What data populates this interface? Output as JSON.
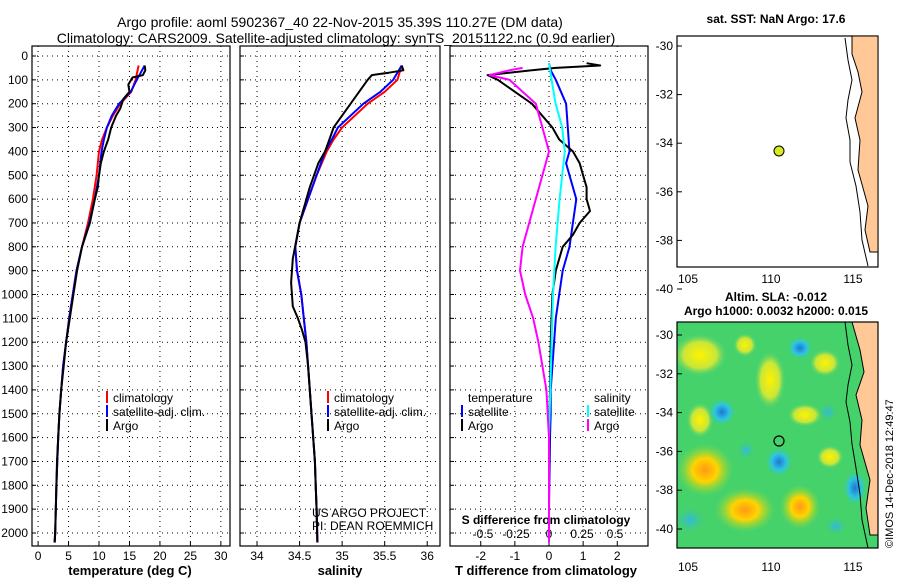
{
  "header": {
    "line1": "Argo profile: aoml 5902367_40 22-Nov-2015 35.39S 110.27E (DM data)",
    "line2": "Climatology: CARS2009. Satellite-adjusted climatology: synTS_20151122.nc (0.9d earlier)"
  },
  "credits": {
    "project": "US ARGO PROJECT",
    "pi": "PI: DEAN ROEMMICH",
    "imos": "©IMOS 14-Dec-2018 12:49:47"
  },
  "colors": {
    "climatology": "#ff0000",
    "satellite": "#0000ff",
    "argo": "#000000",
    "sal_satellite": "#00ffff",
    "sal_argo": "#ff00ff",
    "land": "#ffc896"
  },
  "depth_axis": {
    "ticks": [
      "0",
      "100",
      "200",
      "300",
      "400",
      "500",
      "600",
      "700",
      "800",
      "900",
      "1000",
      "1100",
      "1200",
      "1300",
      "1400",
      "1500",
      "1600",
      "1700",
      "1800",
      "1900",
      "2000"
    ]
  },
  "panels": {
    "temperature": {
      "xlabel": "temperature (deg C)",
      "xticks": [
        "0",
        "5",
        "10",
        "15",
        "20",
        "25",
        "30"
      ]
    },
    "salinity": {
      "xlabel": "salinity",
      "xticks": [
        "34",
        "34.5",
        "35",
        "35.5",
        "36"
      ]
    },
    "difference": {
      "xlabel": "T difference from climatology",
      "xticks": [
        "-2",
        "-1",
        "0",
        "1",
        "2"
      ],
      "top_label": "S difference from climatology",
      "top_ticks": [
        "-0.5",
        "-0.25",
        "0",
        "0.25",
        "0.5"
      ]
    }
  },
  "legend": {
    "climatology": "climatology",
    "satellite": "satellite-adj. clim.",
    "argo": "Argo"
  },
  "diff_legend": {
    "temperature": "temperature",
    "salinity": "salinity",
    "satellite": "satellite",
    "argo": "Argo"
  },
  "map_top": {
    "title": "sat. SST: NaN Argo: 17.6",
    "yticks": [
      "-30",
      "-32",
      "-34",
      "-36",
      "-38",
      "-40"
    ],
    "xticks": [
      "105",
      "110",
      "115"
    ]
  },
  "map_bottom": {
    "title1": "Altim. SLA: -0.012",
    "title2": "Argo h1000: 0.0032 h2000: 0.015",
    "yticks": [
      "-30",
      "-32",
      "-34",
      "-36",
      "-38",
      "-40"
    ],
    "xticks": [
      "105",
      "110",
      "115"
    ]
  },
  "chart_data": [
    {
      "type": "line",
      "title": "temperature",
      "xlabel": "temperature (deg C)",
      "ylabel": "depth",
      "xlim": [
        -1,
        31.5
      ],
      "ylim": [
        2060,
        0
      ],
      "series": [
        {
          "name": "climatology",
          "x": [
            16.5,
            16,
            15.3,
            13.5,
            12.3,
            11.3,
            10.5,
            10,
            9.6,
            9,
            8.2,
            7.2,
            6.3,
            5.7,
            5.1,
            4.6,
            4.1,
            3.8,
            3.5,
            3.3,
            3.15,
            3.0,
            2.9,
            2.8,
            2.7
          ],
          "y": [
            40,
            100,
            150,
            200,
            250,
            300,
            350,
            400,
            500,
            600,
            700,
            800,
            900,
            1000,
            1100,
            1200,
            1300,
            1400,
            1500,
            1600,
            1700,
            1800,
            1900,
            2000,
            2040
          ]
        },
        {
          "name": "satellite-adj. clim.",
          "x": [
            17.5,
            16.2,
            15.2,
            13.3,
            12.1,
            11.3,
            10.8,
            10.4,
            10,
            9.3,
            8.4,
            7.2,
            6.3,
            5.7,
            5.1,
            4.6,
            4.1,
            3.8,
            3.5,
            3.3,
            3.15,
            3.0,
            2.9,
            2.8,
            2.7
          ],
          "y": [
            40,
            100,
            150,
            200,
            250,
            300,
            350,
            400,
            500,
            600,
            700,
            800,
            900,
            1000,
            1100,
            1200,
            1300,
            1400,
            1500,
            1600,
            1700,
            1800,
            1900,
            2000,
            2040
          ]
        },
        {
          "name": "Argo",
          "x": [
            17.5,
            17.6,
            17.2,
            15.5,
            14.8,
            15,
            14,
            13.5,
            12.8,
            12,
            11.5,
            10.8,
            10.3,
            10,
            9.8,
            9.3,
            8.5,
            7.2,
            6.4,
            5.8,
            5.2,
            4.6,
            4.2,
            3.8,
            3.5,
            3.3,
            3.1,
            3.0,
            2.9,
            2.8,
            2.75
          ],
          "y": [
            40,
            60,
            80,
            90,
            120,
            150,
            180,
            220,
            250,
            300,
            350,
            400,
            450,
            500,
            550,
            600,
            700,
            800,
            900,
            1000,
            1100,
            1200,
            1300,
            1400,
            1500,
            1600,
            1700,
            1800,
            1900,
            2000,
            2040
          ]
        }
      ]
    },
    {
      "type": "line",
      "title": "salinity",
      "xlabel": "salinity",
      "ylabel": "depth",
      "xlim": [
        33.8,
        36.15
      ],
      "ylim": [
        2060,
        0
      ],
      "series": [
        {
          "name": "climatology",
          "x": [
            35.7,
            35.65,
            35.5,
            35.3,
            35.15,
            35.0,
            34.9,
            34.82,
            34.7,
            34.6,
            34.5,
            34.45,
            34.47,
            34.52,
            34.55,
            34.58,
            34.6,
            34.62,
            34.64,
            34.66,
            34.68,
            34.69,
            34.7,
            34.71
          ],
          "y": [
            40,
            100,
            150,
            200,
            250,
            300,
            350,
            400,
            500,
            600,
            700,
            800,
            900,
            1000,
            1100,
            1200,
            1300,
            1400,
            1500,
            1600,
            1700,
            1800,
            1900,
            2040
          ]
        },
        {
          "name": "satellite-adj. clim.",
          "x": [
            35.7,
            35.6,
            35.45,
            35.25,
            35.1,
            34.95,
            34.88,
            34.8,
            34.7,
            34.6,
            34.5,
            34.45,
            34.47,
            34.52,
            34.55,
            34.58,
            34.6,
            34.62,
            34.64,
            34.66,
            34.68,
            34.69,
            34.7,
            34.71
          ],
          "y": [
            40,
            100,
            150,
            200,
            250,
            300,
            350,
            400,
            500,
            600,
            700,
            800,
            900,
            1000,
            1100,
            1200,
            1300,
            1400,
            1500,
            1600,
            1700,
            1800,
            1900,
            2040
          ]
        },
        {
          "name": "Argo",
          "x": [
            35.7,
            35.72,
            35.55,
            35.35,
            35.3,
            35.2,
            35.1,
            35.0,
            34.9,
            34.85,
            34.8,
            34.72,
            34.62,
            34.5,
            34.42,
            34.4,
            34.42,
            34.48,
            34.53,
            34.57,
            34.6,
            34.62,
            34.64,
            34.66,
            34.68,
            34.69,
            34.7,
            34.71
          ],
          "y": [
            40,
            60,
            70,
            80,
            100,
            150,
            200,
            250,
            300,
            350,
            400,
            450,
            550,
            700,
            850,
            950,
            1050,
            1100,
            1150,
            1200,
            1300,
            1400,
            1500,
            1600,
            1700,
            1800,
            1900,
            2040
          ]
        }
      ]
    },
    {
      "type": "line",
      "title": "difference from climatology",
      "xlabel": "T difference from climatology",
      "ylabel": "depth",
      "xlim": [
        -2.9,
        2.9
      ],
      "ylim": [
        2060,
        0
      ],
      "series": [
        {
          "name": "T satellite",
          "x": [
            0,
            0.05,
            0.2,
            0.5,
            0.55,
            0.6,
            0.5,
            0.6,
            0.8,
            0.7,
            0.6,
            0.4,
            0.3,
            0.2,
            0.15,
            0.1,
            0.05,
            0.05,
            0.03,
            0.02,
            0.01,
            0,
            0,
            0
          ],
          "y": [
            30,
            60,
            100,
            200,
            300,
            400,
            450,
            500,
            600,
            700,
            800,
            900,
            1000,
            1100,
            1200,
            1300,
            1400,
            1500,
            1600,
            1700,
            1800,
            1900,
            2000,
            2040
          ]
        },
        {
          "name": "T Argo",
          "x": [
            1.1,
            1.5,
            0.2,
            -0.5,
            -1.8,
            -1.5,
            -1,
            -0.5,
            0.1,
            0.3,
            0.7,
            0.9,
            1.0,
            1.1,
            1.1,
            1.2,
            0.9,
            0.7,
            0.4,
            0.2,
            0.1,
            0.05,
            0.03,
            0.01,
            0,
            0
          ],
          "y": [
            30,
            40,
            50,
            60,
            80,
            100,
            150,
            200,
            300,
            350,
            400,
            450,
            500,
            550,
            600,
            650,
            700,
            750,
            800,
            900,
            1000,
            1200,
            1400,
            1600,
            1800,
            2040
          ]
        },
        {
          "name": "S satellite",
          "x": [
            0,
            0.02,
            0.05,
            0.1,
            0.12,
            0.08,
            0.05,
            0.03,
            0.02,
            0.01,
            0,
            0,
            0
          ],
          "y": [
            30,
            100,
            200,
            300,
            400,
            600,
            800,
            1000,
            1200,
            1400,
            1600,
            1800,
            2040
          ]
        },
        {
          "name": "S Argo",
          "x": [
            -0.2,
            -0.3,
            -0.45,
            -0.3,
            -0.1,
            -0.05,
            0,
            -0.05,
            -0.1,
            -0.15,
            -0.2,
            -0.22,
            -0.18,
            -0.12,
            -0.08,
            -0.05,
            -0.02,
            0,
            0
          ],
          "y": [
            50,
            60,
            80,
            100,
            200,
            300,
            400,
            500,
            600,
            700,
            800,
            900,
            1000,
            1100,
            1200,
            1300,
            1400,
            1600,
            2040
          ]
        }
      ]
    }
  ]
}
